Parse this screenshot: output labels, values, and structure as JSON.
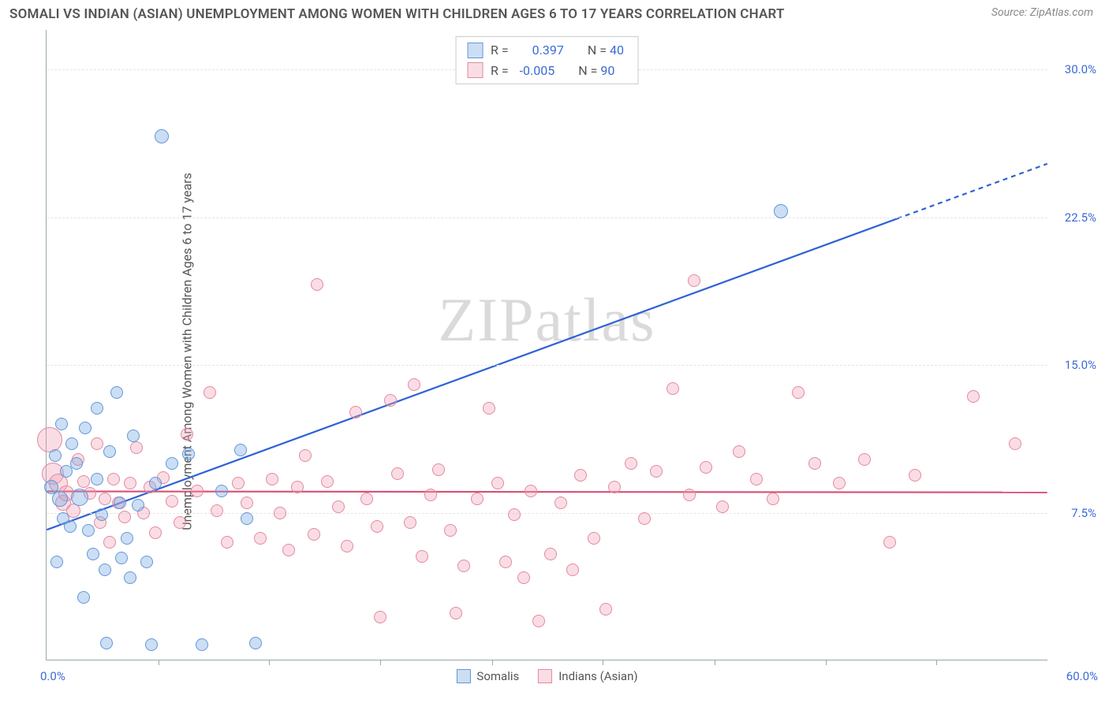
{
  "header": {
    "title": "SOMALI VS INDIAN (ASIAN) UNEMPLOYMENT AMONG WOMEN WITH CHILDREN AGES 6 TO 17 YEARS CORRELATION CHART",
    "source": "Source: ZipAtlas.com"
  },
  "watermark": "ZIPatlas",
  "chart": {
    "type": "scatter",
    "y_label": "Unemployment Among Women with Children Ages 6 to 17 years",
    "xlim": [
      0,
      60
    ],
    "ylim": [
      0,
      32
    ],
    "x_origin_label": "0.0%",
    "x_max_label": "60.0%",
    "y_ticks": [
      {
        "v": 7.5,
        "label": "7.5%"
      },
      {
        "v": 15.0,
        "label": "15.0%"
      },
      {
        "v": 22.5,
        "label": "22.5%"
      },
      {
        "v": 30.0,
        "label": "30.0%"
      }
    ],
    "x_tick_positions": [
      6.7,
      13.3,
      20,
      26.7,
      33.3,
      40,
      46.7,
      53.3
    ],
    "background_color": "#ffffff",
    "grid_color": "#e5e5e5",
    "axis_color": "#9aa7aa"
  },
  "series": {
    "somalis": {
      "label": "Somalis",
      "fill": "rgba(120,169,225,0.38)",
      "stroke": "#6198d8",
      "trend_color": "#2f63d6",
      "trend_width": 2.2,
      "r_value": "0.397",
      "n_value": "40",
      "trend": {
        "x1": 0,
        "y1": 6.6,
        "x2": 60,
        "y2": 25.2,
        "solid_until_x": 51
      },
      "points": [
        {
          "x": 0.3,
          "y": 8.8,
          "r": 9
        },
        {
          "x": 0.5,
          "y": 10.4,
          "r": 8
        },
        {
          "x": 0.6,
          "y": 5.0,
          "r": 8
        },
        {
          "x": 0.8,
          "y": 8.2,
          "r": 10
        },
        {
          "x": 0.9,
          "y": 12.0,
          "r": 8
        },
        {
          "x": 1.0,
          "y": 7.2,
          "r": 8
        },
        {
          "x": 1.2,
          "y": 9.6,
          "r": 8
        },
        {
          "x": 1.4,
          "y": 6.8,
          "r": 8
        },
        {
          "x": 1.5,
          "y": 11.0,
          "r": 8
        },
        {
          "x": 1.8,
          "y": 10.0,
          "r": 8
        },
        {
          "x": 2.0,
          "y": 8.3,
          "r": 11
        },
        {
          "x": 2.2,
          "y": 3.2,
          "r": 8
        },
        {
          "x": 2.3,
          "y": 11.8,
          "r": 8
        },
        {
          "x": 2.5,
          "y": 6.6,
          "r": 8
        },
        {
          "x": 2.8,
          "y": 5.4,
          "r": 8
        },
        {
          "x": 3.0,
          "y": 12.8,
          "r": 8
        },
        {
          "x": 3.0,
          "y": 9.2,
          "r": 8
        },
        {
          "x": 3.3,
          "y": 7.4,
          "r": 8
        },
        {
          "x": 3.5,
          "y": 4.6,
          "r": 8
        },
        {
          "x": 3.6,
          "y": 0.9,
          "r": 8
        },
        {
          "x": 3.8,
          "y": 10.6,
          "r": 8
        },
        {
          "x": 4.2,
          "y": 13.6,
          "r": 8
        },
        {
          "x": 4.4,
          "y": 8.0,
          "r": 8
        },
        {
          "x": 4.5,
          "y": 5.2,
          "r": 8
        },
        {
          "x": 4.8,
          "y": 6.2,
          "r": 8
        },
        {
          "x": 5.0,
          "y": 4.2,
          "r": 8
        },
        {
          "x": 5.2,
          "y": 11.4,
          "r": 8
        },
        {
          "x": 5.5,
          "y": 7.9,
          "r": 8
        },
        {
          "x": 6.0,
          "y": 5.0,
          "r": 8
        },
        {
          "x": 6.3,
          "y": 0.8,
          "r": 8
        },
        {
          "x": 6.5,
          "y": 9.0,
          "r": 8
        },
        {
          "x": 6.9,
          "y": 26.6,
          "r": 9
        },
        {
          "x": 7.5,
          "y": 10.0,
          "r": 8
        },
        {
          "x": 8.5,
          "y": 10.5,
          "r": 8
        },
        {
          "x": 9.3,
          "y": 0.8,
          "r": 8
        },
        {
          "x": 10.5,
          "y": 8.6,
          "r": 8
        },
        {
          "x": 11.6,
          "y": 10.7,
          "r": 8
        },
        {
          "x": 12.0,
          "y": 7.2,
          "r": 8
        },
        {
          "x": 12.5,
          "y": 0.9,
          "r": 8
        },
        {
          "x": 44.0,
          "y": 22.8,
          "r": 9
        }
      ]
    },
    "indians": {
      "label": "Indians (Asian)",
      "fill": "rgba(241,159,177,0.35)",
      "stroke": "#e389a0",
      "trend_color": "#d94f76",
      "trend_width": 2.2,
      "r_value": "-0.005",
      "n_value": "90",
      "trend": {
        "x1": 0,
        "y1": 8.55,
        "x2": 60,
        "y2": 8.5,
        "solid_until_x": 60
      },
      "points": [
        {
          "x": 0.2,
          "y": 11.2,
          "r": 16
        },
        {
          "x": 0.4,
          "y": 9.5,
          "r": 14
        },
        {
          "x": 0.7,
          "y": 9.0,
          "r": 12
        },
        {
          "x": 1.0,
          "y": 8.0,
          "r": 10
        },
        {
          "x": 1.2,
          "y": 8.5,
          "r": 10
        },
        {
          "x": 1.6,
          "y": 7.6,
          "r": 9
        },
        {
          "x": 1.9,
          "y": 10.2,
          "r": 8
        },
        {
          "x": 2.2,
          "y": 9.1,
          "r": 8
        },
        {
          "x": 2.6,
          "y": 8.5,
          "r": 8
        },
        {
          "x": 3.0,
          "y": 11.0,
          "r": 8
        },
        {
          "x": 3.2,
          "y": 7.0,
          "r": 8
        },
        {
          "x": 3.5,
          "y": 8.2,
          "r": 8
        },
        {
          "x": 3.8,
          "y": 6.0,
          "r": 8
        },
        {
          "x": 4.0,
          "y": 9.2,
          "r": 8
        },
        {
          "x": 4.3,
          "y": 8.0,
          "r": 8
        },
        {
          "x": 4.7,
          "y": 7.3,
          "r": 8
        },
        {
          "x": 5.0,
          "y": 9.0,
          "r": 8
        },
        {
          "x": 5.4,
          "y": 10.8,
          "r": 8
        },
        {
          "x": 5.8,
          "y": 7.5,
          "r": 8
        },
        {
          "x": 6.2,
          "y": 8.8,
          "r": 8
        },
        {
          "x": 6.5,
          "y": 6.5,
          "r": 8
        },
        {
          "x": 7.0,
          "y": 9.3,
          "r": 8
        },
        {
          "x": 7.5,
          "y": 8.1,
          "r": 8
        },
        {
          "x": 8.0,
          "y": 7.0,
          "r": 8
        },
        {
          "x": 8.4,
          "y": 11.5,
          "r": 8
        },
        {
          "x": 9.0,
          "y": 8.6,
          "r": 8
        },
        {
          "x": 9.8,
          "y": 13.6,
          "r": 8
        },
        {
          "x": 10.2,
          "y": 7.6,
          "r": 8
        },
        {
          "x": 10.8,
          "y": 6.0,
          "r": 8
        },
        {
          "x": 11.5,
          "y": 9.0,
          "r": 8
        },
        {
          "x": 12.0,
          "y": 8.0,
          "r": 8
        },
        {
          "x": 12.8,
          "y": 6.2,
          "r": 8
        },
        {
          "x": 13.5,
          "y": 9.2,
          "r": 8
        },
        {
          "x": 14.0,
          "y": 7.5,
          "r": 8
        },
        {
          "x": 14.5,
          "y": 5.6,
          "r": 8
        },
        {
          "x": 15.0,
          "y": 8.8,
          "r": 8
        },
        {
          "x": 15.5,
          "y": 10.4,
          "r": 8
        },
        {
          "x": 16.0,
          "y": 6.4,
          "r": 8
        },
        {
          "x": 16.2,
          "y": 19.1,
          "r": 8
        },
        {
          "x": 16.8,
          "y": 9.1,
          "r": 8
        },
        {
          "x": 17.5,
          "y": 7.8,
          "r": 8
        },
        {
          "x": 18.0,
          "y": 5.8,
          "r": 8
        },
        {
          "x": 18.5,
          "y": 12.6,
          "r": 8
        },
        {
          "x": 19.2,
          "y": 8.2,
          "r": 8
        },
        {
          "x": 19.8,
          "y": 6.8,
          "r": 8
        },
        {
          "x": 20.0,
          "y": 2.2,
          "r": 8
        },
        {
          "x": 20.6,
          "y": 13.2,
          "r": 8
        },
        {
          "x": 21.0,
          "y": 9.5,
          "r": 8
        },
        {
          "x": 21.8,
          "y": 7.0,
          "r": 8
        },
        {
          "x": 22.0,
          "y": 14.0,
          "r": 8
        },
        {
          "x": 22.5,
          "y": 5.3,
          "r": 8
        },
        {
          "x": 23.0,
          "y": 8.4,
          "r": 8
        },
        {
          "x": 23.5,
          "y": 9.7,
          "r": 8
        },
        {
          "x": 24.2,
          "y": 6.6,
          "r": 8
        },
        {
          "x": 24.5,
          "y": 2.4,
          "r": 8
        },
        {
          "x": 25.0,
          "y": 4.8,
          "r": 8
        },
        {
          "x": 25.8,
          "y": 8.2,
          "r": 8
        },
        {
          "x": 26.5,
          "y": 12.8,
          "r": 8
        },
        {
          "x": 27.0,
          "y": 9.0,
          "r": 8
        },
        {
          "x": 27.5,
          "y": 5.0,
          "r": 8
        },
        {
          "x": 28.0,
          "y": 7.4,
          "r": 8
        },
        {
          "x": 28.6,
          "y": 4.2,
          "r": 8
        },
        {
          "x": 29.0,
          "y": 8.6,
          "r": 8
        },
        {
          "x": 29.5,
          "y": 2.0,
          "r": 8
        },
        {
          "x": 30.2,
          "y": 5.4,
          "r": 8
        },
        {
          "x": 30.8,
          "y": 8.0,
          "r": 8
        },
        {
          "x": 31.5,
          "y": 4.6,
          "r": 8
        },
        {
          "x": 32.0,
          "y": 9.4,
          "r": 8
        },
        {
          "x": 32.8,
          "y": 6.2,
          "r": 8
        },
        {
          "x": 33.5,
          "y": 2.6,
          "r": 8
        },
        {
          "x": 34.0,
          "y": 8.8,
          "r": 8
        },
        {
          "x": 35.0,
          "y": 10.0,
          "r": 8
        },
        {
          "x": 35.8,
          "y": 7.2,
          "r": 8
        },
        {
          "x": 36.5,
          "y": 9.6,
          "r": 8
        },
        {
          "x": 37.5,
          "y": 13.8,
          "r": 8
        },
        {
          "x": 38.5,
          "y": 8.4,
          "r": 8
        },
        {
          "x": 38.8,
          "y": 19.3,
          "r": 8
        },
        {
          "x": 39.5,
          "y": 9.8,
          "r": 8
        },
        {
          "x": 40.5,
          "y": 7.8,
          "r": 8
        },
        {
          "x": 41.5,
          "y": 10.6,
          "r": 8
        },
        {
          "x": 42.5,
          "y": 9.2,
          "r": 8
        },
        {
          "x": 43.5,
          "y": 8.2,
          "r": 8
        },
        {
          "x": 45.0,
          "y": 13.6,
          "r": 8
        },
        {
          "x": 46.0,
          "y": 10.0,
          "r": 8
        },
        {
          "x": 47.5,
          "y": 9.0,
          "r": 8
        },
        {
          "x": 49.0,
          "y": 10.2,
          "r": 8
        },
        {
          "x": 50.5,
          "y": 6.0,
          "r": 8
        },
        {
          "x": 52.0,
          "y": 9.4,
          "r": 8
        },
        {
          "x": 55.5,
          "y": 13.4,
          "r": 8
        },
        {
          "x": 58.0,
          "y": 11.0,
          "r": 8
        }
      ]
    }
  },
  "top_legend_labels": {
    "r": "R =",
    "n": "N ="
  },
  "bottom_legend": {
    "s1": "Somalis",
    "s2": "Indians (Asian)"
  }
}
